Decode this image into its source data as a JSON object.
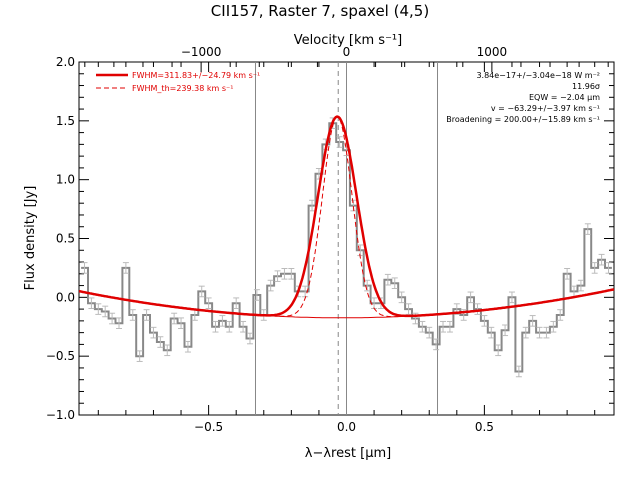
{
  "chart_data": {
    "type": "line",
    "title": "CII157, Raster 7, spaxel (4,5)",
    "xlabel": "λ−λrest [μm]",
    "ylabel": "Flux density [Jy]",
    "top_xlabel": "Velocity [km s⁻¹]",
    "xlim": [
      -0.97,
      0.97
    ],
    "ylim": [
      -1.0,
      2.0
    ],
    "top_xlim_kms": [
      -1840,
      1840
    ],
    "xticks": [
      {
        "value": -0.5,
        "label": "−0.5"
      },
      {
        "value": 0.0,
        "label": "0.0"
      },
      {
        "value": 0.5,
        "label": "0.5"
      }
    ],
    "yticks": [
      {
        "value": -1.0,
        "label": "−1.0"
      },
      {
        "value": -0.5,
        "label": "−0.5"
      },
      {
        "value": 0.0,
        "label": "0.0"
      },
      {
        "value": 0.5,
        "label": "0.5"
      },
      {
        "value": 1.0,
        "label": "1.0"
      },
      {
        "value": 1.5,
        "label": "1.5"
      },
      {
        "value": 2.0,
        "label": "2.0"
      }
    ],
    "top_xticks": [
      {
        "value": -1000,
        "label": "−1000"
      },
      {
        "value": 0,
        "label": "0"
      },
      {
        "value": 1000,
        "label": "1000"
      }
    ],
    "vertical_markers_x": [
      -0.33,
      0.33
    ],
    "center_marker_x": -0.03,
    "zero_marker_x": 0.0,
    "legend": {
      "placement": "top-left",
      "entries": [
        {
          "label": "FWHM=311.83+/−24.79 km s⁻¹",
          "style": "solid",
          "color": "#e00000"
        },
        {
          "label": "FWHM_th=239.38 km s⁻¹",
          "style": "dashed",
          "color": "#e00000"
        }
      ]
    },
    "annotations": [
      "3.84e−17+/−3.04e−18 W m⁻²",
      "11.96σ",
      "EQW = −2.04 μm",
      "v = −63.29+/−3.97 km s⁻¹",
      "Broadening = 200.00+/−15.89 km s⁻¹"
    ],
    "series": [
      {
        "style": "step-with-errorbars",
        "color": "#888888",
        "error": 0.045,
        "x": [
          -0.95,
          -0.925,
          -0.9,
          -0.875,
          -0.85,
          -0.825,
          -0.8,
          -0.775,
          -0.75,
          -0.725,
          -0.7,
          -0.675,
          -0.65,
          -0.625,
          -0.6,
          -0.575,
          -0.55,
          -0.525,
          -0.5,
          -0.475,
          -0.45,
          -0.425,
          -0.4,
          -0.375,
          -0.35,
          -0.325,
          -0.3,
          -0.275,
          -0.25,
          -0.225,
          -0.2,
          -0.175,
          -0.15,
          -0.125,
          -0.1,
          -0.075,
          -0.05,
          -0.025,
          0.0,
          0.025,
          0.05,
          0.075,
          0.1,
          0.125,
          0.15,
          0.175,
          0.2,
          0.225,
          0.25,
          0.275,
          0.3,
          0.325,
          0.35,
          0.375,
          0.4,
          0.425,
          0.45,
          0.475,
          0.5,
          0.525,
          0.55,
          0.575,
          0.6,
          0.625,
          0.65,
          0.675,
          0.7,
          0.725,
          0.75,
          0.775,
          0.8,
          0.825,
          0.85,
          0.875,
          0.9,
          0.925,
          0.95
        ],
        "y": [
          0.25,
          -0.05,
          -0.1,
          -0.12,
          -0.18,
          -0.22,
          0.25,
          -0.15,
          -0.5,
          -0.15,
          -0.3,
          -0.38,
          -0.45,
          -0.18,
          -0.22,
          -0.42,
          -0.15,
          0.05,
          -0.05,
          -0.25,
          -0.2,
          -0.25,
          -0.05,
          -0.25,
          -0.35,
          0.02,
          -0.15,
          0.1,
          0.18,
          0.2,
          0.2,
          0.05,
          0.05,
          0.78,
          1.05,
          1.3,
          1.48,
          1.32,
          1.25,
          0.78,
          0.4,
          0.1,
          -0.05,
          -0.05,
          0.15,
          0.12,
          0.0,
          -0.1,
          -0.18,
          -0.25,
          -0.3,
          -0.4,
          -0.25,
          -0.25,
          -0.1,
          -0.15,
          0.0,
          -0.1,
          -0.2,
          -0.3,
          -0.45,
          -0.28,
          0.0,
          -0.63,
          -0.3,
          -0.2,
          -0.3,
          -0.3,
          -0.25,
          -0.15,
          0.2,
          0.05,
          0.1,
          0.58,
          0.25,
          0.32,
          0.25
        ]
      },
      {
        "name": "FWHM=311.83+/−24.79 km s⁻¹",
        "style": "solid",
        "color": "#e00000",
        "model": "continuum + gaussian",
        "continuum": {
          "a": -0.174,
          "b": 0.008,
          "c": 0.249
        },
        "gaussian": {
          "amp": 1.71,
          "center": -0.0334,
          "fwhm": 0.1646
        }
      },
      {
        "name": "FWHM_th=239.38 km s⁻¹",
        "style": "dashed",
        "color": "#e00000",
        "model": "continuum + gaussian",
        "continuum": {
          "a": -0.174,
          "b": 0.008,
          "c": 0.249
        },
        "gaussian": {
          "amp": 1.71,
          "center": -0.0334,
          "fwhm": 0.1264
        }
      },
      {
        "style": "thin-solid",
        "color": "#e00000",
        "model": "continuum",
        "x_range": [
          -0.33,
          0.33
        ],
        "continuum": {
          "a": -0.174,
          "b": 0.008,
          "c": 0.249
        }
      }
    ]
  }
}
